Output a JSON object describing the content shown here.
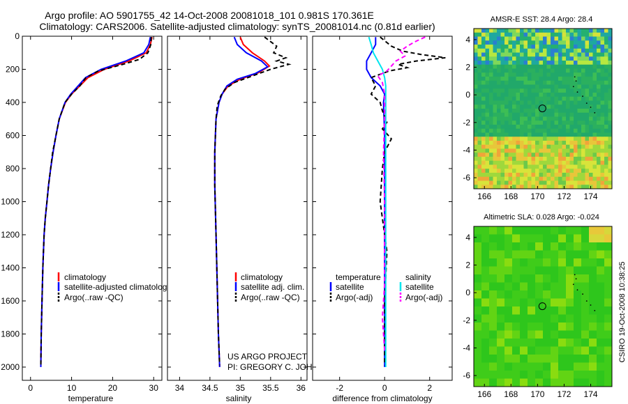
{
  "header": {
    "line1": "Argo profile: AO 5901755_42 14-Oct-2008 20081018_101 0.981S 170.361E",
    "line2": "Climatology: CARS2006. Satellite-adjusted climatology: synTS_20081014.nc (0.81d earlier)"
  },
  "colors": {
    "climatology": "#ff0000",
    "satellite": "#0000ff",
    "argo": "#000000",
    "sal_satellite": "#00e5ee",
    "sal_argo": "#ff00ff"
  },
  "chart_data": [
    {
      "type": "line",
      "name": "temperature-profile",
      "xlabel": "temperature",
      "ylabel": "",
      "xlim": [
        -2,
        32
      ],
      "ylim": [
        2080,
        0
      ],
      "xticks": [
        0,
        10,
        20,
        30
      ],
      "yticks": [
        0,
        200,
        400,
        600,
        800,
        1000,
        1200,
        1400,
        1600,
        1800,
        2000
      ],
      "legend": [
        "climatology",
        "satellite-adjusted climatology",
        "Argo(..raw -QC)"
      ],
      "series": [
        {
          "name": "climatology",
          "color": "#ff0000",
          "dash": "",
          "x": [
            29.6,
            29.2,
            28.2,
            24.0,
            18.0,
            14.0,
            12.0,
            10.0,
            8.5,
            7.0,
            6.2,
            5.5,
            4.9,
            4.4,
            4.0,
            3.6,
            3.3,
            3.0,
            2.8,
            2.6,
            2.5
          ],
          "y": [
            5,
            50,
            100,
            150,
            200,
            250,
            300,
            350,
            400,
            500,
            600,
            700,
            800,
            900,
            1000,
            1100,
            1200,
            1400,
            1600,
            1800,
            2000
          ]
        },
        {
          "name": "satellite-adjusted climatology",
          "color": "#0000ff",
          "dash": "",
          "x": [
            29.2,
            28.8,
            27.6,
            23.2,
            17.2,
            13.4,
            11.6,
            9.8,
            8.4,
            7.0,
            6.2,
            5.5,
            4.9,
            4.4,
            4.0,
            3.6,
            3.3,
            3.0,
            2.8,
            2.6,
            2.5
          ],
          "y": [
            5,
            50,
            100,
            150,
            200,
            250,
            300,
            350,
            400,
            500,
            600,
            700,
            800,
            900,
            1000,
            1100,
            1200,
            1400,
            1600,
            1800,
            2000
          ]
        },
        {
          "name": "Argo(..raw -QC)",
          "color": "#000000",
          "dash": "6,4",
          "x": [
            29.4,
            29.3,
            28.6,
            26.5,
            22.5,
            16.5,
            13.5,
            12.0,
            10.0,
            8.4,
            7.0,
            6.2,
            5.4,
            4.9,
            4.4,
            4.0,
            3.6,
            3.3,
            3.0,
            2.8,
            2.6,
            2.5
          ],
          "y": [
            5,
            50,
            100,
            140,
            170,
            210,
            250,
            300,
            350,
            400,
            500,
            600,
            700,
            800,
            900,
            1000,
            1100,
            1200,
            1400,
            1600,
            1800,
            1990
          ]
        }
      ]
    },
    {
      "type": "line",
      "name": "salinity-profile",
      "xlabel": "salinity",
      "xlim": [
        33.8,
        36.1
      ],
      "ylim": [
        2080,
        0
      ],
      "xticks": [
        34,
        34.5,
        35,
        35.5,
        36
      ],
      "legend": [
        "climatology",
        "satellite adj. clim.",
        "Argo(..raw -QC)"
      ],
      "series": [
        {
          "name": "climatology",
          "color": "#ff0000",
          "dash": "",
          "x": [
            35.0,
            35.05,
            35.2,
            35.4,
            35.48,
            35.3,
            35.0,
            34.8,
            34.7,
            34.65,
            34.6,
            34.58,
            34.58,
            34.6,
            34.62,
            34.64,
            34.66
          ],
          "y": [
            5,
            50,
            100,
            150,
            180,
            220,
            260,
            300,
            350,
            400,
            500,
            700,
            900,
            1200,
            1500,
            1800,
            2000
          ]
        },
        {
          "name": "satellite adj. clim.",
          "color": "#0000ff",
          "dash": "",
          "x": [
            34.9,
            34.95,
            35.1,
            35.35,
            35.45,
            35.25,
            34.95,
            34.78,
            34.7,
            34.65,
            34.6,
            34.58,
            34.58,
            34.6,
            34.62,
            34.64,
            34.66
          ],
          "y": [
            5,
            50,
            100,
            150,
            185,
            225,
            260,
            300,
            350,
            400,
            500,
            700,
            900,
            1200,
            1500,
            1800,
            2000
          ]
        },
        {
          "name": "Argo(..raw -QC)",
          "color": "#000000",
          "dash": "6,4",
          "x": [
            35.4,
            35.6,
            35.55,
            35.75,
            35.6,
            35.8,
            35.5,
            35.2,
            34.9,
            34.75,
            34.68,
            34.62,
            34.6,
            34.58,
            34.58,
            34.6,
            34.62,
            34.64,
            34.66
          ],
          "y": [
            5,
            60,
            100,
            130,
            150,
            170,
            200,
            240,
            280,
            320,
            360,
            420,
            500,
            700,
            900,
            1200,
            1500,
            1800,
            1990
          ]
        }
      ]
    },
    {
      "type": "line",
      "name": "difference-profile",
      "xlabel": "difference from climatology",
      "xlim": [
        -3.2,
        3.0
      ],
      "ylim": [
        2080,
        0
      ],
      "xticks": [
        -2,
        0,
        2
      ],
      "legend_titles": [
        "temperature",
        "salinity"
      ],
      "legend": [
        "satellite",
        "Argo(-adj)",
        "satellite",
        "Argo(-adj)"
      ],
      "series": [
        {
          "name": "temperature satellite",
          "color": "#0000ff",
          "dash": "",
          "x": [
            -0.4,
            -0.4,
            -0.6,
            -0.8,
            -0.8,
            -0.6,
            -0.2,
            0.0,
            -0.05,
            0.0,
            0.0,
            0.0,
            0.0,
            0.0
          ],
          "y": [
            5,
            50,
            100,
            150,
            200,
            250,
            300,
            350,
            400,
            600,
            900,
            1200,
            1600,
            2000
          ]
        },
        {
          "name": "temperature Argo(-adj)",
          "color": "#000000",
          "dash": "6,4",
          "x": [
            -0.2,
            0.3,
            0.8,
            1.6,
            2.7,
            1.4,
            0.6,
            1.0,
            0.2,
            -0.6,
            -0.4,
            -0.6,
            -0.2,
            -0.1,
            0.1,
            -0.1,
            0.3,
            0.0,
            -0.1,
            -0.2,
            -0.1,
            0.1,
            0.0,
            0.0
          ],
          "y": [
            5,
            60,
            90,
            110,
            130,
            150,
            170,
            190,
            210,
            250,
            300,
            350,
            400,
            450,
            520,
            560,
            620,
            700,
            800,
            1000,
            1100,
            1300,
            1600,
            1990
          ]
        },
        {
          "name": "salinity satellite",
          "color": "#00e5ee",
          "dash": "",
          "x": [
            -0.7,
            -0.6,
            -0.5,
            -0.3,
            -0.1,
            0.0,
            0.05,
            0.05,
            0.05,
            0.05,
            0.05,
            0.05,
            0.05
          ],
          "y": [
            5,
            50,
            100,
            150,
            200,
            250,
            300,
            400,
            600,
            900,
            1200,
            1600,
            2000
          ]
        },
        {
          "name": "salinity Argo(-adj)",
          "color": "#ff00ff",
          "dash": "6,4",
          "x": [
            1.8,
            1.4,
            1.0,
            0.7,
            0.9,
            0.5,
            0.3,
            0.1,
            -0.3,
            -0.1,
            0.0,
            0.0,
            -0.05,
            0.0,
            0.0,
            0.0,
            -0.1,
            0.0
          ],
          "y": [
            5,
            30,
            60,
            90,
            120,
            150,
            180,
            210,
            240,
            280,
            350,
            500,
            700,
            1000,
            1300,
            1500,
            1700,
            1900
          ]
        }
      ]
    },
    {
      "type": "heatmap",
      "name": "sst-map",
      "title": "AMSR-E SST: 28.4 Argo: 28.4",
      "xlim": [
        165.2,
        175.6
      ],
      "ylim": [
        -6.8,
        4.8
      ],
      "xticks": [
        166,
        168,
        170,
        172,
        174
      ],
      "yticks": [
        4,
        2,
        0,
        -2,
        -4,
        -6
      ],
      "marker": {
        "x": 170.361,
        "y": -0.981
      }
    },
    {
      "type": "heatmap",
      "name": "sla-map",
      "title": "Altimetric SLA: 0.028 Argo: -0.024",
      "xlim": [
        165.2,
        175.6
      ],
      "ylim": [
        -6.8,
        4.8
      ],
      "xticks": [
        166,
        168,
        170,
        172,
        174
      ],
      "yticks": [
        4,
        2,
        0,
        -2,
        -4,
        -6
      ],
      "marker": {
        "x": 170.361,
        "y": -0.981
      }
    }
  ],
  "credits": {
    "project": "US ARGO PROJECT",
    "pi": "PI: GREGORY C. JOHNSON",
    "stamp": "CSIRO 19-Oct-2008 10:38:25"
  }
}
